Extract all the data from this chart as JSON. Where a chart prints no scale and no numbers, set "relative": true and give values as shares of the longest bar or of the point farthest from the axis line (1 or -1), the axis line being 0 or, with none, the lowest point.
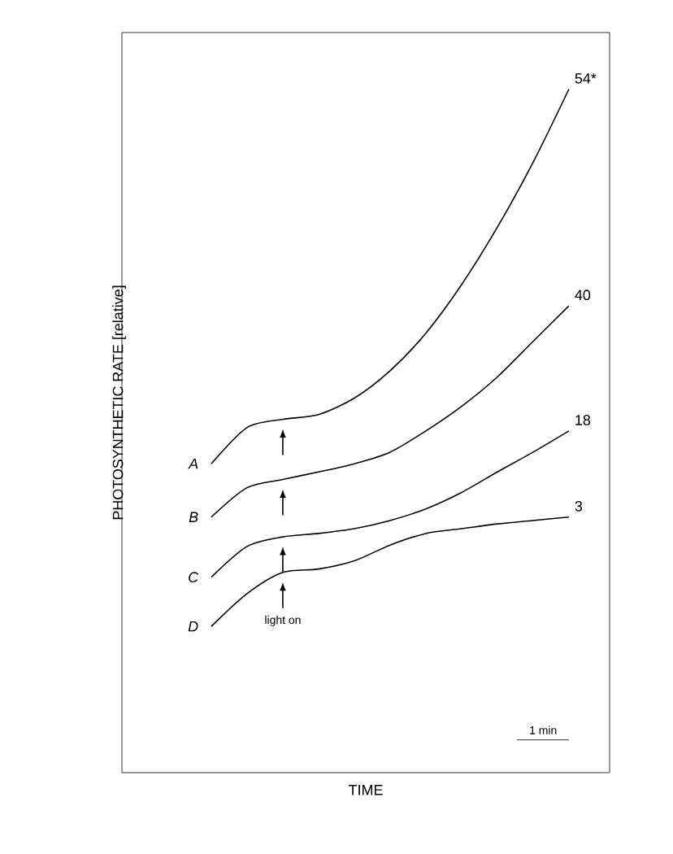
{
  "chart_data": {
    "type": "line",
    "relative": true,
    "xlabel": "TIME",
    "ylabel": "PHOTOSYNTHETIC RATE [relative]",
    "categories": [
      null,
      null,
      null,
      null,
      null,
      null,
      null,
      null,
      null,
      null,
      null
    ],
    "series": [
      {
        "name": "54*",
        "color": "#000000",
        "values": [
          0.452,
          0.505,
          0.517,
          0.524,
          0.548,
          0.588,
          0.643,
          0.714,
          0.798,
          0.893,
          1
        ]
      },
      {
        "name": "40",
        "color": "#000000",
        "values": [
          0.374,
          0.417,
          0.429,
          0.44,
          0.452,
          0.469,
          0.5,
          0.536,
          0.579,
          0.631,
          0.683
        ]
      },
      {
        "name": "18",
        "color": "#000000",
        "values": [
          0.286,
          0.331,
          0.345,
          0.35,
          0.357,
          0.369,
          0.386,
          0.41,
          0.44,
          0.469,
          0.5
        ]
      },
      {
        "name": "3",
        "color": "#000000",
        "values": [
          0.214,
          0.262,
          0.293,
          0.298,
          0.31,
          0.333,
          0.35,
          0.357,
          0.364,
          0.369,
          0.374
        ]
      }
    ],
    "annotations": [
      "A",
      "B",
      "C",
      "D",
      "light on",
      "1 min"
    ],
    "marker": "none",
    "line_style": "solid"
  }
}
